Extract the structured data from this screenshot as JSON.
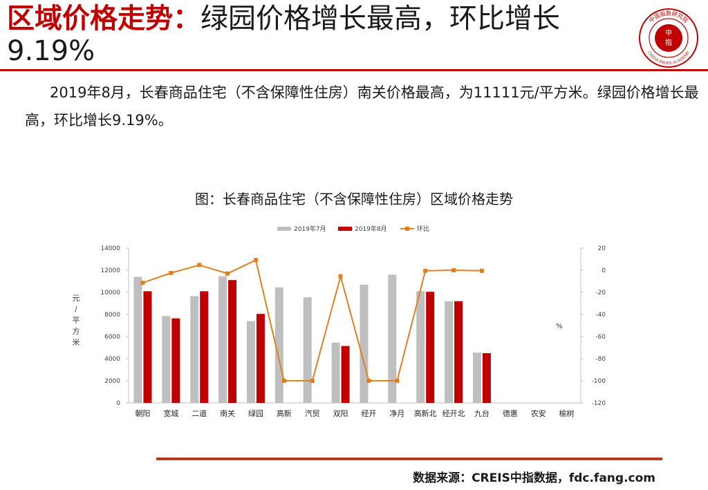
{
  "header": {
    "title_red": "区域价格走势：",
    "title_rest_line1": "绿园价格增长最高，环比增长",
    "title_rest_line2": "9.19%"
  },
  "logo": {
    "center_text_1": "中",
    "center_text_2": "指",
    "ring_text_top": "中国指数研究院",
    "ring_text_bottom": "CHINA INDEX ACADEMY",
    "color": "#c00000"
  },
  "paragraph": "2019年8月，长春商品住宅（不含保障性住房）南关价格最高，为11111元/平方米。绿园价格增长最高，环比增长9.19%。",
  "chart_title": "图：长春商品住宅（不含保障性住房）区域价格走势",
  "source": "数据来源：CREIS中指数据，fdc.fang.com",
  "chart_data": {
    "type": "bar",
    "categories": [
      "朝阳",
      "宽城",
      "二道",
      "南关",
      "绿园",
      "高新",
      "汽贸",
      "双阳",
      "经开",
      "净月",
      "高新北",
      "经开北",
      "九台",
      "德惠",
      "农安",
      "榆树"
    ],
    "series": [
      {
        "name": "2019年7月",
        "type": "bar",
        "axis": "left",
        "color": "#bfbfbf",
        "values": [
          11400,
          7850,
          9650,
          11450,
          7400,
          10450,
          9550,
          5450,
          10700,
          11600,
          10100,
          9200,
          4550,
          null,
          null,
          null
        ]
      },
      {
        "name": "2019年8月",
        "type": "bar",
        "axis": "left",
        "color": "#c00000",
        "values": [
          10100,
          7650,
          10100,
          11111,
          8050,
          null,
          null,
          5150,
          null,
          null,
          10050,
          9200,
          4500,
          null,
          null,
          null
        ]
      },
      {
        "name": "环比",
        "type": "line",
        "axis": "right",
        "color": "#e07f20",
        "values": [
          -11.4,
          -2.5,
          4.7,
          -3.0,
          9.19,
          -100,
          -100,
          -5.5,
          -100,
          -100,
          -0.5,
          0,
          -0.5,
          null,
          null,
          null
        ]
      }
    ],
    "ylabel": "元/平方米",
    "ylim": [
      0,
      14000
    ],
    "yticks": [
      0,
      2000,
      4000,
      6000,
      8000,
      10000,
      12000,
      14000
    ],
    "y2label": "%",
    "y2lim": [
      -120,
      20
    ],
    "y2ticks": [
      -120,
      -100,
      -80,
      -60,
      -40,
      -20,
      0,
      20
    ],
    "legend_position": "top"
  }
}
